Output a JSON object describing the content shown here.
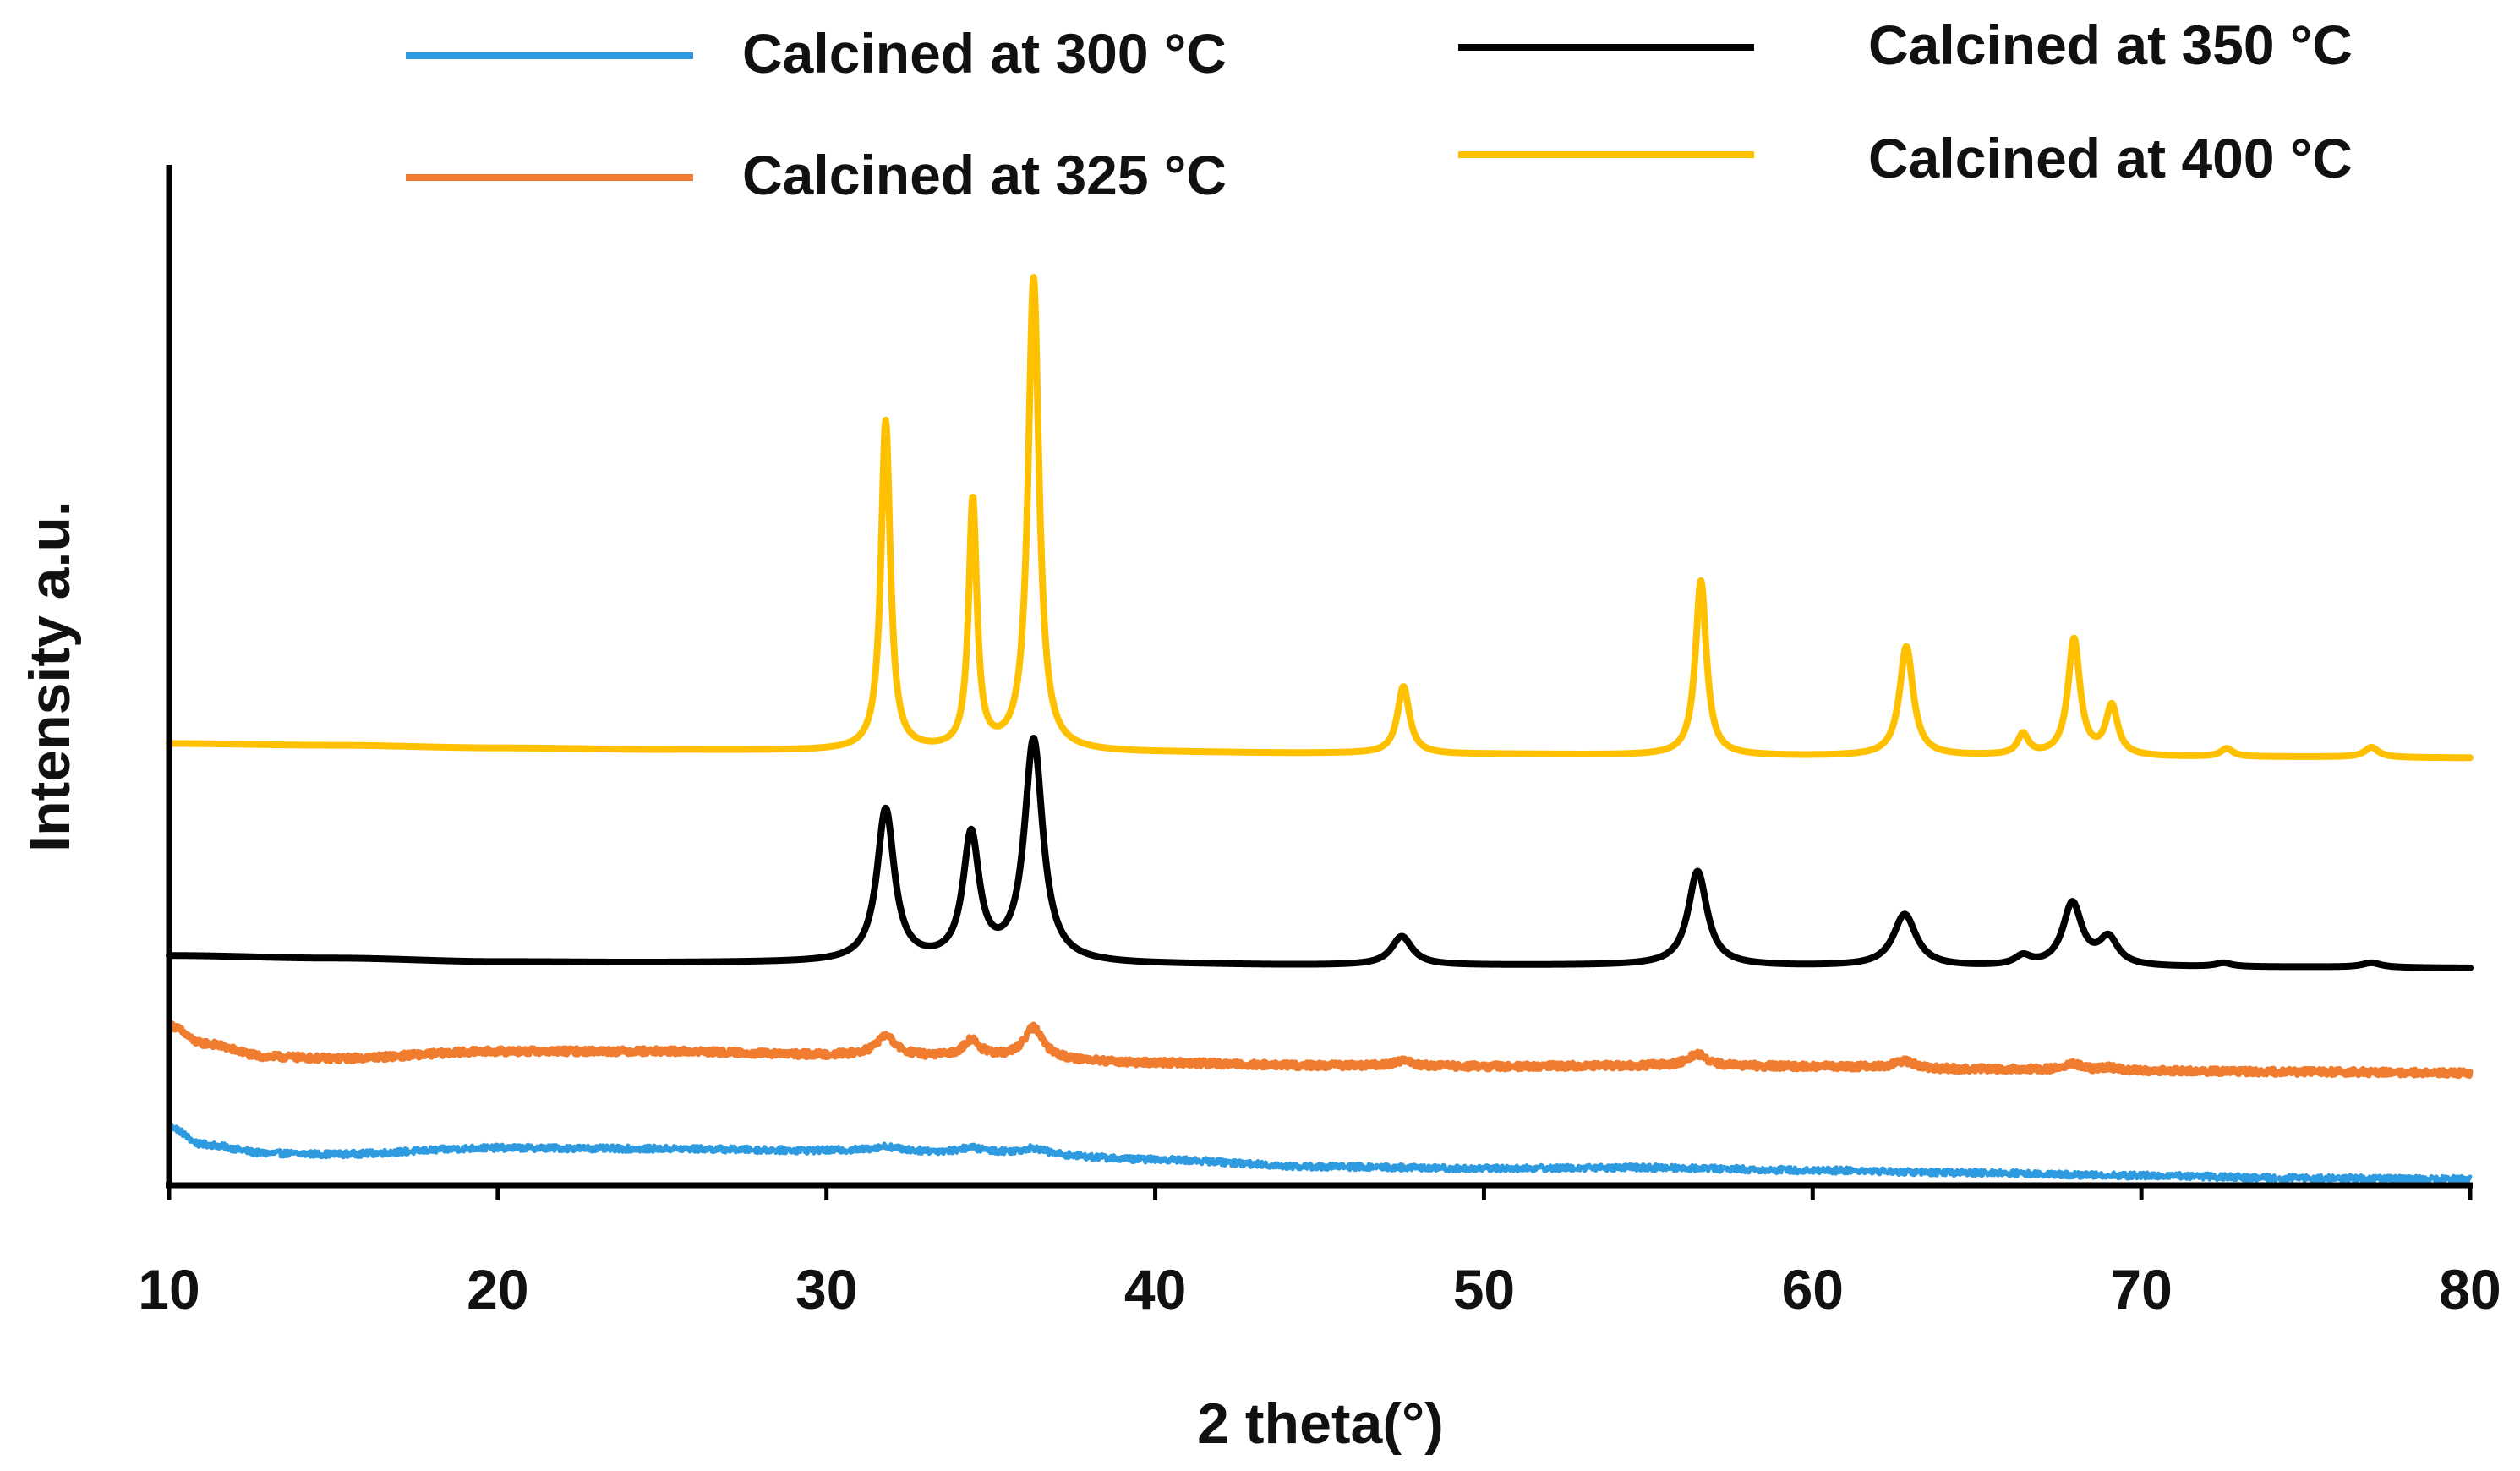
{
  "chart_data": {
    "type": "line",
    "title": "",
    "xlabel": "2 theta(°)",
    "ylabel": "Intensity a.u.",
    "xlim": [
      10,
      80
    ],
    "ylim": [
      0,
      100
    ],
    "x_ticks": [
      10,
      20,
      30,
      40,
      50,
      60,
      70,
      80
    ],
    "x_tick_labels": [
      "10",
      "20",
      "30",
      "40",
      "50",
      "60",
      "70",
      "80"
    ],
    "y_ticks_shown": false,
    "grid": false,
    "legend_position": "top",
    "series": [
      {
        "name": "Calcined at 300 °C",
        "color": "#2e9be0",
        "noise": 0.35,
        "baseline": [
          [
            10,
            6.2
          ],
          [
            11,
            4.2
          ],
          [
            13,
            3.2
          ],
          [
            15,
            3.1
          ],
          [
            20,
            3.8
          ],
          [
            25,
            3.7
          ],
          [
            30,
            3.5
          ],
          [
            35,
            3.3
          ],
          [
            40,
            2.5
          ],
          [
            45,
            1.7
          ],
          [
            50,
            1.5
          ],
          [
            55,
            1.6
          ],
          [
            60,
            1.3
          ],
          [
            65,
            1.0
          ],
          [
            70,
            0.7
          ],
          [
            75,
            0.4
          ],
          [
            80,
            0.3
          ]
        ],
        "peaks": [
          {
            "center": 31.8,
            "height": 0.5,
            "width": 0.5
          },
          {
            "center": 34.4,
            "height": 0.5,
            "width": 0.4
          },
          {
            "center": 36.3,
            "height": 0.6,
            "width": 0.4
          }
        ]
      },
      {
        "name": "Calcined at 325 °C",
        "color": "#f07c30",
        "noise": 0.35,
        "baseline": [
          [
            10,
            17.5
          ],
          [
            11,
            15.5
          ],
          [
            13,
            14.0
          ],
          [
            15,
            13.8
          ],
          [
            20,
            14.6
          ],
          [
            25,
            14.6
          ],
          [
            30,
            14.2
          ],
          [
            35,
            13.9
          ],
          [
            40,
            13.3
          ],
          [
            45,
            13.0
          ],
          [
            50,
            12.9
          ],
          [
            55,
            13.0
          ],
          [
            60,
            12.9
          ],
          [
            65,
            12.6
          ],
          [
            70,
            12.4
          ],
          [
            75,
            12.3
          ],
          [
            80,
            12.2
          ]
        ],
        "peaks": [
          {
            "center": 31.8,
            "height": 2.2,
            "width": 0.35
          },
          {
            "center": 34.4,
            "height": 1.9,
            "width": 0.3
          },
          {
            "center": 36.3,
            "height": 3.4,
            "width": 0.35
          },
          {
            "center": 47.5,
            "height": 0.6,
            "width": 0.35
          },
          {
            "center": 56.5,
            "height": 1.3,
            "width": 0.35
          },
          {
            "center": 62.8,
            "height": 0.8,
            "width": 0.35
          },
          {
            "center": 67.9,
            "height": 0.8,
            "width": 0.3
          },
          {
            "center": 69.0,
            "height": 0.4,
            "width": 0.3
          }
        ]
      },
      {
        "name": "Calcined at 350 °C",
        "color": "#000000",
        "noise": 0,
        "baseline": [
          [
            10,
            25.3
          ],
          [
            15,
            25.0
          ],
          [
            20,
            24.6
          ],
          [
            25,
            24.5
          ],
          [
            30,
            24.5
          ],
          [
            35,
            24.4
          ],
          [
            40,
            24.3
          ],
          [
            45,
            24.2
          ],
          [
            50,
            24.2
          ],
          [
            55,
            24.2
          ],
          [
            60,
            24.1
          ],
          [
            65,
            24.0
          ],
          [
            70,
            24.0
          ],
          [
            75,
            24.0
          ],
          [
            80,
            23.9
          ]
        ],
        "peaks": [
          {
            "center": 31.8,
            "height": 17.0,
            "width": 0.32
          },
          {
            "center": 34.4,
            "height": 14.0,
            "width": 0.3
          },
          {
            "center": 36.3,
            "height": 24.8,
            "width": 0.34
          },
          {
            "center": 47.5,
            "height": 3.2,
            "width": 0.38
          },
          {
            "center": 56.5,
            "height": 10.5,
            "width": 0.35
          },
          {
            "center": 62.8,
            "height": 5.8,
            "width": 0.42
          },
          {
            "center": 66.4,
            "height": 1.0,
            "width": 0.3
          },
          {
            "center": 67.9,
            "height": 7.0,
            "width": 0.35
          },
          {
            "center": 69.0,
            "height": 3.0,
            "width": 0.35
          },
          {
            "center": 72.5,
            "height": 0.4,
            "width": 0.3
          },
          {
            "center": 77.0,
            "height": 0.5,
            "width": 0.35
          }
        ]
      },
      {
        "name": "Calcined at 400 °C",
        "color": "#ffc000",
        "noise": 0,
        "baseline": [
          [
            10,
            49.0
          ],
          [
            15,
            48.8
          ],
          [
            20,
            48.5
          ],
          [
            25,
            48.3
          ],
          [
            30,
            48.2
          ],
          [
            35,
            48.1
          ],
          [
            40,
            48.0
          ],
          [
            45,
            47.9
          ],
          [
            50,
            47.8
          ],
          [
            55,
            47.7
          ],
          [
            60,
            47.6
          ],
          [
            65,
            47.6
          ],
          [
            70,
            47.5
          ],
          [
            75,
            47.5
          ],
          [
            80,
            47.4
          ]
        ],
        "peaks": [
          {
            "center": 31.8,
            "height": 36.8,
            "width": 0.17
          },
          {
            "center": 34.45,
            "height": 27.8,
            "width": 0.15
          },
          {
            "center": 36.3,
            "height": 52.8,
            "width": 0.2
          },
          {
            "center": 47.55,
            "height": 7.5,
            "width": 0.22
          },
          {
            "center": 56.6,
            "height": 19.5,
            "width": 0.2
          },
          {
            "center": 62.85,
            "height": 12.2,
            "width": 0.25
          },
          {
            "center": 66.4,
            "height": 2.3,
            "width": 0.2
          },
          {
            "center": 67.95,
            "height": 13.0,
            "width": 0.22
          },
          {
            "center": 69.1,
            "height": 5.5,
            "width": 0.22
          },
          {
            "center": 72.6,
            "height": 0.9,
            "width": 0.22
          },
          {
            "center": 77.0,
            "height": 1.1,
            "width": 0.25
          }
        ]
      }
    ]
  }
}
